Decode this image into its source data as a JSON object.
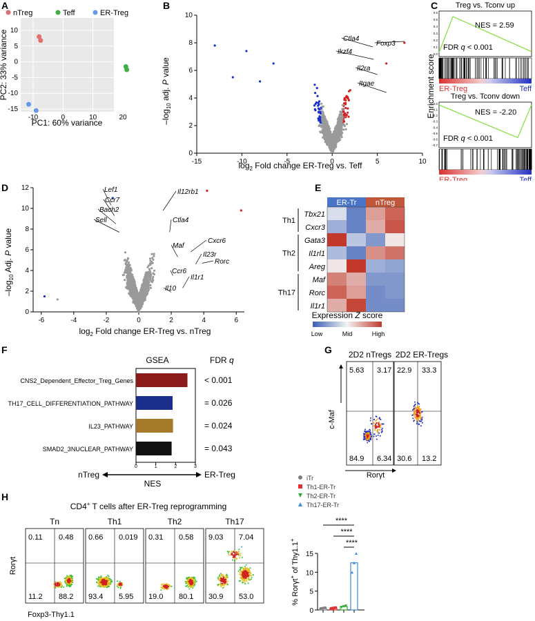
{
  "panel_labels": [
    "A",
    "B",
    "C",
    "D",
    "E",
    "F",
    "G",
    "H"
  ],
  "panelA": {
    "legend": [
      "nTreg",
      "Teff",
      "ER-Treg"
    ],
    "colors": [
      "#e07070",
      "#3cb043",
      "#6a9ae6"
    ],
    "xlabel": "PC1: 60% variance",
    "ylabel": "PC2: 33% variance",
    "xticks": [
      "-10",
      "0",
      "10",
      "20"
    ],
    "yticks": [
      "10",
      "5",
      "0",
      "-5",
      "-10",
      "-15"
    ]
  },
  "panelB": {
    "xlabel_pre": "log",
    "xlabel_sub": "2",
    "xlabel_post": " Fold change ER-Treg vs. Teff",
    "ylabel_pre": "–log",
    "ylabel_sub": "10",
    "ylabel_post": " adj. ",
    "ylabel_p": "P",
    "ylabel_end": " value",
    "xticks": [
      "-15",
      "-10",
      "-5",
      "0",
      "5",
      "10"
    ],
    "yticks": [
      "0",
      "2",
      "4",
      "6",
      "8",
      "10"
    ],
    "genes": [
      "Ctla4",
      "Foxp3",
      "Ikzf4",
      "Il2ra",
      "Itgae"
    ]
  },
  "panelC": {
    "top_title": "Treg vs. Tconv up",
    "top_nes": "NES = 2.59",
    "bottom_title": "Treg vs. Tconv down",
    "bottom_nes": "NES = -2.20",
    "fdr_pre": "FDR ",
    "fdr_q": "q",
    "fdr_post": " < 0.001",
    "ylabel": "Enrichment score",
    "left": "ER-Treg",
    "right": "Teff",
    "ticks_top": [
      "0.6",
      "0.5",
      "0.4",
      "0.3",
      "0.2",
      "0.1",
      "0.0"
    ],
    "ticks_bottom": [
      "0.0",
      "-0.1",
      "-0.2",
      "-0.3",
      "-0.4",
      "-0.5",
      "-0.6",
      "-0.7"
    ]
  },
  "panelD": {
    "xlabel_pre": "log",
    "xlabel_sub": "2",
    "xlabel_post": " Fold change ER-Treg vs. nTreg",
    "ylabel_pre": "–log",
    "ylabel_sub": "10",
    "ylabel_post": " Adj. ",
    "ylabel_p": "P",
    "ylabel_end": " value",
    "xticks": [
      "-6",
      "-4",
      "-2",
      "0",
      "2",
      "4",
      "6"
    ],
    "yticks": [
      "0",
      "2",
      "4",
      "6",
      "8",
      "10",
      "12"
    ],
    "genes": [
      "Lef1",
      "Ccr7",
      "Bach2",
      "Sell",
      "Il12rb1",
      "Ctla4",
      "Cxcr6",
      "Maf",
      "Il23r",
      "Rorc",
      "Ccr6",
      "Il1r1",
      "Il10"
    ]
  },
  "panelE": {
    "col_labels": [
      "ER-Tr",
      "nTreg"
    ],
    "col_colors": [
      "#4a74c8",
      "#c0573a"
    ],
    "groups": [
      "Th1",
      "Th2",
      "Th17"
    ],
    "genes": [
      "Tbx21",
      "Cxcr3",
      "Gata3",
      "Il1rl1",
      "Areg",
      "Maf",
      "Rorc",
      "Il1r1"
    ],
    "values": [
      [
        -0.2,
        -1.0,
        0.6,
        1.0
      ],
      [
        -0.6,
        -1.0,
        0.5,
        1.1
      ],
      [
        1.3,
        -0.4,
        -0.8,
        0.1
      ],
      [
        -0.5,
        -1.0,
        0.7,
        0.9
      ],
      [
        0.1,
        1.3,
        -0.6,
        -0.7
      ],
      [
        0.8,
        0.5,
        -0.8,
        -0.8
      ],
      [
        1.0,
        0.6,
        -0.9,
        -0.8
      ],
      [
        0.5,
        1.2,
        -0.9,
        -0.9
      ]
    ],
    "scale_title_pre": "Expression ",
    "scale_title_z": "Z",
    "scale_title_post": " score",
    "scale_labels": [
      "Low",
      "Mid",
      "High"
    ]
  },
  "panelF": {
    "chart_data": {
      "type": "bar",
      "title": "GSEA",
      "categories": [
        "CNS2_Dependent_Effector_Treg_Genes",
        "TH17_CELL_DIFFERENTIATION_PATHWAY",
        "IL23_PATHWAY",
        "SMAD2_3NUCLEAR_PATHWAY"
      ],
      "values": [
        2.6,
        1.85,
        1.87,
        1.8
      ],
      "colors": [
        "#8b1a1a",
        "#1a2e8a",
        "#a57a2a",
        "#111111"
      ],
      "fdr_header_pre": "FDR ",
      "fdr_header_q": "q",
      "fdr": [
        "< 0.001",
        "= 0.026",
        "= 0.024",
        "= 0.043"
      ],
      "xticks": [
        "0",
        "1",
        "2",
        "3"
      ],
      "xlim": [
        0,
        3
      ],
      "xlabel": "NES",
      "left": "nTreg",
      "right": "ER-Treg"
    }
  },
  "panelG": {
    "titles": [
      "2D2 nTregs",
      "2D2 ER-Tregs"
    ],
    "ylabel": "c-Maf",
    "xlabel": "Rorγt",
    "quads": [
      [
        "5.63",
        "3.17",
        "84.9",
        "6.34"
      ],
      [
        "22.9",
        "33.3",
        "30.6",
        "13.2"
      ]
    ]
  },
  "panelH": {
    "title_pre": "CD4",
    "title_sup": "+",
    "title_post": " T cells after ER-Treg reprogramming",
    "plots": [
      "Tn",
      "Th1",
      "Th2",
      "Th17"
    ],
    "quads": [
      [
        "0.11",
        "0.48",
        "11.2",
        "88.2"
      ],
      [
        "0.66",
        "0.019",
        "93.4",
        "5.95"
      ],
      [
        "0.31",
        "0.58",
        "19.0",
        "80.1"
      ],
      [
        "9.03",
        "7.04",
        "30.9",
        "53.0"
      ]
    ],
    "ylabel": "Rorγt",
    "xlabel": "Foxp3-Thy1.1"
  },
  "panelHbar": {
    "legend": [
      "iTr",
      "Th1-ER-Tr",
      "Th2-ER-Tr",
      "Th17-ER-Tr"
    ],
    "colors": [
      "#7f7f7f",
      "#e03030",
      "#2ea82e",
      "#3a8de0"
    ],
    "ylabel_pre": "% Rorγt",
    "ylabel_sup": "+",
    "ylabel_post": " of Thy1.1",
    "ylabel_sup2": "+",
    "yticks": [
      "0",
      "5",
      "10",
      "15"
    ],
    "stars": [
      "****",
      "****",
      "****"
    ],
    "chart_data": {
      "type": "bar",
      "categories": [
        "iTr",
        "Th1-ER-Tr",
        "Th2-ER-Tr",
        "Th17-ER-Tr"
      ],
      "values": [
        0.5,
        0.5,
        0.9,
        12.5
      ],
      "ylim": [
        0,
        15
      ]
    }
  }
}
